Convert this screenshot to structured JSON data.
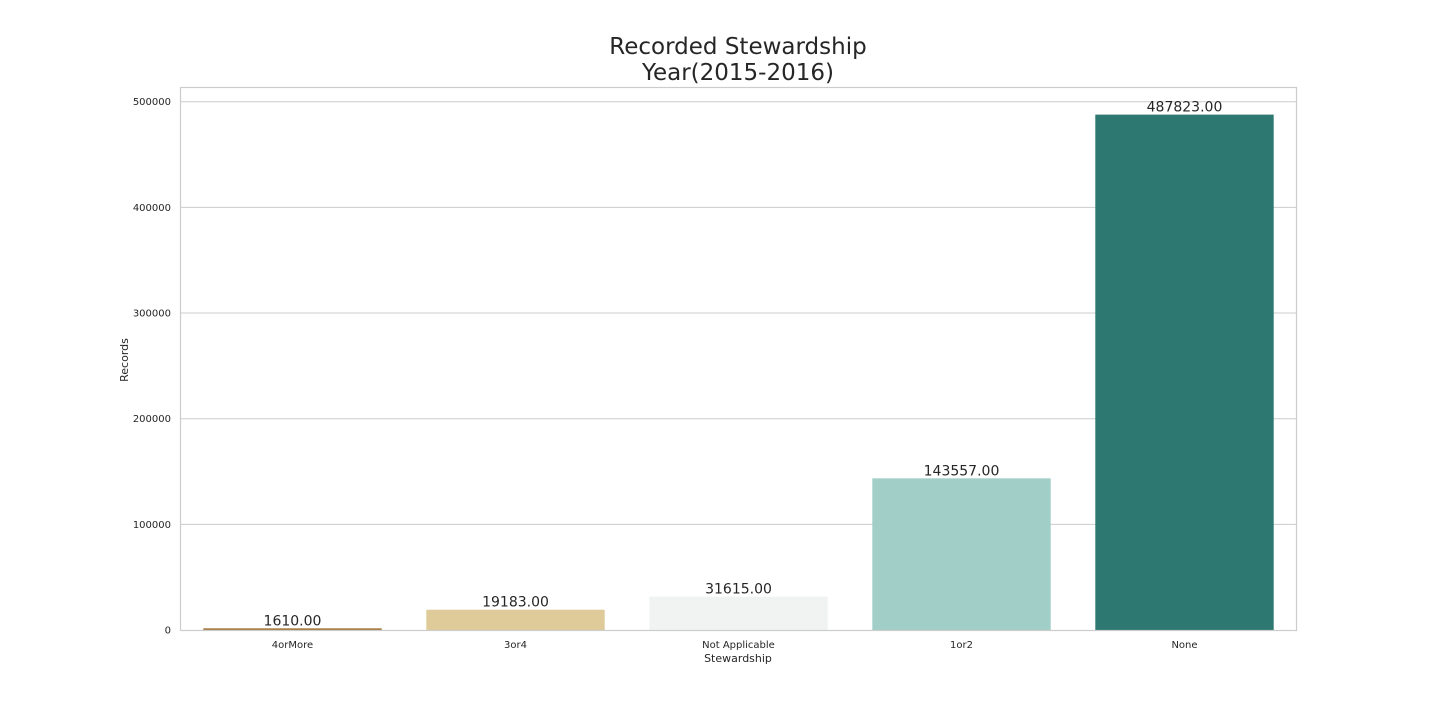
{
  "chart_data": {
    "type": "bar",
    "title": "Recorded Stewardship",
    "subtitle": "Year(2015-2016)",
    "xlabel": "Stewardship",
    "ylabel": "Records",
    "categories": [
      "4orMore",
      "3or4",
      "Not Applicable",
      "1or2",
      "None"
    ],
    "values": [
      1610,
      19183,
      31615,
      143557,
      487823
    ],
    "data_labels": [
      "1610.00",
      "19183.00",
      "31615.00",
      "143557.00",
      "487823.00"
    ],
    "colors": [
      "#a6793f",
      "#dfca9a",
      "#f1f3f2",
      "#a1cfc8",
      "#2d7870"
    ],
    "ylim": [
      0,
      513000
    ],
    "yticks": [
      0,
      100000,
      200000,
      300000,
      400000,
      500000
    ],
    "ytick_labels": [
      "0",
      "100000",
      "200000",
      "300000",
      "400000",
      "500000"
    ],
    "grid": true,
    "legend": "none"
  }
}
